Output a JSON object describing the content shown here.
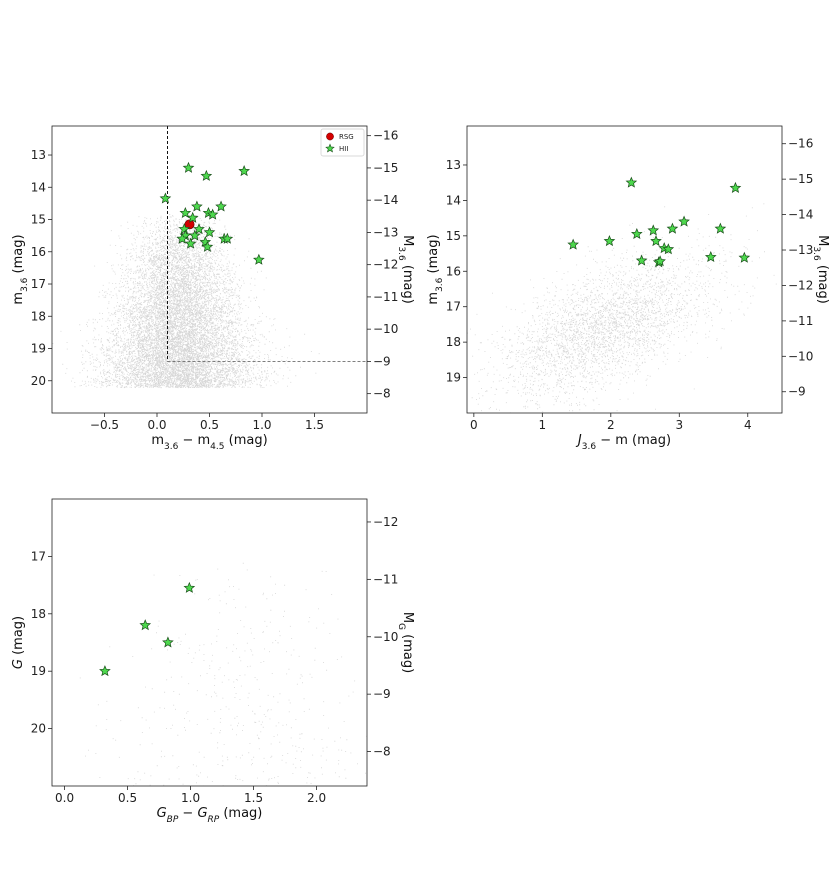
{
  "chart_data": [
    {
      "id": "panel-a",
      "type": "scatter",
      "xlabel": "m3.6 − m4.5 (mag)",
      "xlabel_parts": {
        "main": "m",
        "sub": "3.6",
        "mid": " − m",
        "sub2": "4.5",
        "tail": " (mag)"
      },
      "ylabel": "m3.6 (mag)",
      "ylabel_parts": {
        "main": "m",
        "sub": "3.6",
        "tail": " (mag)"
      },
      "ylabel_right": "M3.6 (mag)",
      "ylabel_right_parts": {
        "main": "M",
        "sub": "3.6",
        "tail": " (mag)"
      },
      "xlim": [
        -1.0,
        2.0
      ],
      "ylim": [
        21.0,
        12.1
      ],
      "xticks": [
        -0.5,
        0.0,
        0.5,
        1.0,
        1.5
      ],
      "xtick_labels": [
        "−0.5",
        "0.0",
        "0.5",
        "1.0",
        "1.5"
      ],
      "yticks": [
        13,
        14,
        15,
        16,
        17,
        18,
        19,
        20
      ],
      "ytick_labels": [
        "13",
        "14",
        "15",
        "16",
        "17",
        "18",
        "19",
        "20"
      ],
      "right_offset": -28.4,
      "right_ticks": [
        -16,
        -15,
        -14,
        -13,
        -12,
        -11,
        -10,
        -9,
        -8
      ],
      "right_tick_labels": [
        "−16",
        "−15",
        "−14",
        "−13",
        "−12",
        "−11",
        "−10",
        "−9",
        "−8"
      ],
      "legend": {
        "placement": "top-right",
        "entries": [
          "RSG",
          "HII"
        ]
      },
      "background_cloud": {
        "n": 11000,
        "x_center": 0.2,
        "x_spread": 0.3,
        "y_bright": 14.8,
        "y_faint": 20.2
      },
      "cut_lines": {
        "vertical_x": 0.1,
        "horizontal_y": 19.4
      },
      "series": [
        {
          "name": "RSG",
          "color": "#d40000",
          "marker": "circle",
          "points": [
            [
              0.31,
              15.15
            ]
          ]
        },
        {
          "name": "HII",
          "color": "#4dd84d",
          "marker": "star",
          "points": [
            [
              0.3,
              13.4
            ],
            [
              0.47,
              13.65
            ],
            [
              0.83,
              13.5
            ],
            [
              0.08,
              14.35
            ],
            [
              0.27,
              14.8
            ],
            [
              0.38,
              14.6
            ],
            [
              0.49,
              14.8
            ],
            [
              0.53,
              14.85
            ],
            [
              0.61,
              14.6
            ],
            [
              0.34,
              14.95
            ],
            [
              0.26,
              15.3
            ],
            [
              0.4,
              15.3
            ],
            [
              0.5,
              15.4
            ],
            [
              0.27,
              15.5
            ],
            [
              0.24,
              15.6
            ],
            [
              0.36,
              15.5
            ],
            [
              0.32,
              15.75
            ],
            [
              0.46,
              15.7
            ],
            [
              0.48,
              15.85
            ],
            [
              0.64,
              15.6
            ],
            [
              0.67,
              15.6
            ],
            [
              0.97,
              16.25
            ]
          ]
        }
      ]
    },
    {
      "id": "panel-b",
      "type": "scatter",
      "xlabel": "J − m3.6 (mag)",
      "xlabel_parts": {
        "main": "J",
        "mid": " − m",
        "sub": "3.6",
        "tail": " (mag)"
      },
      "ylabel": "m3.6 (mag)",
      "ylabel_parts": {
        "main": "m",
        "sub": "3.6",
        "tail": " (mag)"
      },
      "ylabel_right": "M3.6 (mag)",
      "ylabel_right_parts": {
        "main": "M",
        "sub": "3.6",
        "tail": " (mag)"
      },
      "xlim": [
        -0.1,
        4.5
      ],
      "ylim": [
        20.0,
        11.9
      ],
      "xticks": [
        0,
        1,
        2,
        3,
        4
      ],
      "xtick_labels": [
        "0",
        "1",
        "2",
        "3",
        "4"
      ],
      "yticks": [
        13,
        14,
        15,
        16,
        17,
        18,
        19
      ],
      "ytick_labels": [
        "13",
        "14",
        "15",
        "16",
        "17",
        "18",
        "19"
      ],
      "right_offset": -28.4,
      "right_ticks": [
        -16,
        -15,
        -14,
        -13,
        -12,
        -11,
        -10,
        -9
      ],
      "right_tick_labels": [
        "−16",
        "−15",
        "−14",
        "−13",
        "−12",
        "−11",
        "−10",
        "−9"
      ],
      "background_cloud": {
        "n": 3200,
        "x_center": 1.9,
        "x_spread": 0.65,
        "y_center": 17.6,
        "y_spread": 1.0
      },
      "series": [
        {
          "name": "HII",
          "color": "#4dd84d",
          "marker": "star",
          "points": [
            [
              2.3,
              13.5
            ],
            [
              3.82,
              13.65
            ],
            [
              3.07,
              14.6
            ],
            [
              2.9,
              14.8
            ],
            [
              3.6,
              14.8
            ],
            [
              2.38,
              14.95
            ],
            [
              2.62,
              14.85
            ],
            [
              1.45,
              15.25
            ],
            [
              1.98,
              15.15
            ],
            [
              2.66,
              15.15
            ],
            [
              2.78,
              15.35
            ],
            [
              2.84,
              15.38
            ],
            [
              2.45,
              15.7
            ],
            [
              2.7,
              15.75
            ],
            [
              2.72,
              15.72
            ],
            [
              3.46,
              15.6
            ],
            [
              3.95,
              15.62
            ]
          ]
        }
      ]
    },
    {
      "id": "panel-c",
      "type": "scatter",
      "xlabel": "GBP − GRP (mag)",
      "xlabel_parts": {
        "main": "G",
        "sub": "BP",
        "mid": " − G",
        "sub2": "RP",
        "tail": " (mag)"
      },
      "ylabel": "G (mag)",
      "ylabel_parts": {
        "main": "G",
        "tail": " (mag)"
      },
      "ylabel_right": "MG (mag)",
      "ylabel_right_parts": {
        "main": "M",
        "sub": "G",
        "tail": " (mag)"
      },
      "xlim": [
        -0.1,
        2.4
      ],
      "ylim": [
        21.0,
        16.0
      ],
      "xticks": [
        0.0,
        0.5,
        1.0,
        1.5,
        2.0
      ],
      "xtick_labels": [
        "0.0",
        "0.5",
        "1.0",
        "1.5",
        "2.0"
      ],
      "yticks": [
        17,
        18,
        19,
        20
      ],
      "ytick_labels": [
        "17",
        "18",
        "19",
        "20"
      ],
      "right_offset": -28.4,
      "right_ticks": [
        -12,
        -11,
        -10,
        -9,
        -8
      ],
      "right_tick_labels": [
        "−12",
        "−11",
        "−10",
        "−9",
        "−8"
      ],
      "background_cloud": {
        "n": 420,
        "x_center": 1.4,
        "x_spread": 0.5,
        "y_bright": 17.0,
        "y_faint": 21.0
      },
      "series": [
        {
          "name": "HII",
          "color": "#4dd84d",
          "marker": "star",
          "points": [
            [
              0.99,
              17.55
            ],
            [
              0.64,
              18.2
            ],
            [
              0.82,
              18.5
            ],
            [
              0.32,
              19.0
            ]
          ]
        }
      ]
    }
  ]
}
